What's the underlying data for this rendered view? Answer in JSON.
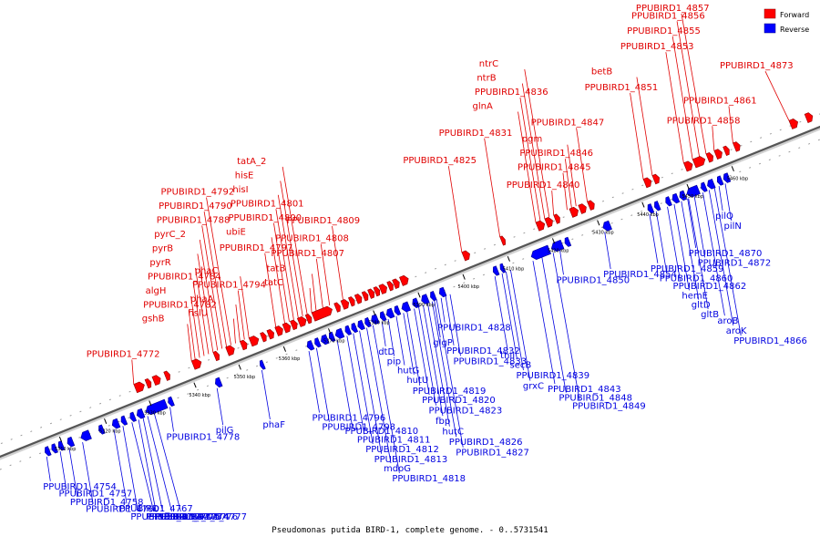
{
  "legend": {
    "forward_label": "Forward",
    "reverse_label": "Reverse",
    "forward_color": "#ff0000",
    "reverse_color": "#0000ff"
  },
  "caption": "Pseudomonas putida BIRD-1, complete genome. - 0..5731541",
  "scale_ticks": [
    "5310 kbp",
    "5320 kbp",
    "5330 kbp",
    "5340 kbp",
    "5350 kbp",
    "5360 kbp",
    "5370 kbp",
    "5380 kbp",
    "5390 kbp",
    "5400 kbp",
    "5410 kbp",
    "5420 kbp",
    "5430 kbp",
    "5440 kbp",
    "5450 kbp",
    "5460 kbp"
  ],
  "forward_genes": [
    {
      "pos": 5328.3,
      "len": 2.0
    },
    {
      "pos": 5330.8,
      "len": 1.0
    },
    {
      "pos": 5332.4,
      "len": 1.5
    },
    {
      "pos": 5335,
      "len": 1.0
    },
    {
      "pos": 5341.2,
      "len": 1.8
    },
    {
      "pos": 5346.0,
      "len": 1.0
    },
    {
      "pos": 5348.8,
      "len": 1.6
    },
    {
      "pos": 5352.0,
      "len": 1.2
    },
    {
      "pos": 5354.0,
      "len": 1.8
    },
    {
      "pos": 5356.5,
      "len": 1.0
    },
    {
      "pos": 5358.0,
      "len": 1.2
    },
    {
      "pos": 5359.8,
      "len": 1.4
    },
    {
      "pos": 5361.5,
      "len": 1.4
    },
    {
      "pos": 5363.2,
      "len": 1.2
    },
    {
      "pos": 5364.8,
      "len": 1.6
    },
    {
      "pos": 5366.6,
      "len": 1.0
    },
    {
      "pos": 5368.0,
      "len": 4.2
    },
    {
      "pos": 5373.0,
      "len": 1.0
    },
    {
      "pos": 5374.5,
      "len": 1.4
    },
    {
      "pos": 5376.2,
      "len": 1.0
    },
    {
      "pos": 5377.6,
      "len": 1.2
    },
    {
      "pos": 5379.2,
      "len": 1.0
    },
    {
      "pos": 5380.5,
      "len": 1.1
    },
    {
      "pos": 5381.8,
      "len": 1.0
    },
    {
      "pos": 5383.0,
      "len": 1.4
    },
    {
      "pos": 5384.8,
      "len": 1.0
    },
    {
      "pos": 5386.0,
      "len": 1.2
    },
    {
      "pos": 5387.6,
      "len": 1.6
    },
    {
      "pos": 5401.5,
      "len": 1.4
    },
    {
      "pos": 5410.0,
      "len": 0.8
    },
    {
      "pos": 5418.0,
      "len": 1.6
    },
    {
      "pos": 5420.0,
      "len": 1.4
    },
    {
      "pos": 5422.0,
      "len": 1.0
    },
    {
      "pos": 5425.5,
      "len": 1.6
    },
    {
      "pos": 5427.5,
      "len": 1.4
    },
    {
      "pos": 5429.5,
      "len": 1.2
    },
    {
      "pos": 5442.0,
      "len": 1.4
    },
    {
      "pos": 5444.0,
      "len": 1.2
    },
    {
      "pos": 5451.0,
      "len": 1.6
    },
    {
      "pos": 5453.0,
      "len": 2.4
    },
    {
      "pos": 5456.0,
      "len": 1.2
    },
    {
      "pos": 5457.8,
      "len": 1.4
    },
    {
      "pos": 5459.8,
      "len": 1.0
    },
    {
      "pos": 5462.0,
      "len": 1.2
    },
    {
      "pos": 5474.5,
      "len": 1.6
    },
    {
      "pos": 5478.0,
      "len": 1.4
    }
  ],
  "reverse_genes": [
    {
      "pos": 5306.0,
      "len": 1.0
    },
    {
      "pos": 5307.5,
      "len": 1.0
    },
    {
      "pos": 5309.0,
      "len": 1.0
    },
    {
      "pos": 5311.0,
      "len": 1.2
    },
    {
      "pos": 5314.0,
      "len": 2.0
    },
    {
      "pos": 5318.0,
      "len": 1.0
    },
    {
      "pos": 5321.0,
      "len": 1.4
    },
    {
      "pos": 5323.0,
      "len": 1.0
    },
    {
      "pos": 5325.0,
      "len": 1.0
    },
    {
      "pos": 5326.5,
      "len": 1.4
    },
    {
      "pos": 5328.5,
      "len": 4.5
    },
    {
      "pos": 5333.5,
      "len": 1.0
    },
    {
      "pos": 5344.0,
      "len": 1.2
    },
    {
      "pos": 5354.0,
      "len": 0.8
    },
    {
      "pos": 5364.5,
      "len": 1.2
    },
    {
      "pos": 5366.2,
      "len": 1.0
    },
    {
      "pos": 5367.6,
      "len": 1.4
    },
    {
      "pos": 5369.4,
      "len": 1.0
    },
    {
      "pos": 5370.8,
      "len": 1.6
    },
    {
      "pos": 5373.0,
      "len": 1.0
    },
    {
      "pos": 5374.4,
      "len": 1.0
    },
    {
      "pos": 5375.8,
      "len": 1.2
    },
    {
      "pos": 5377.4,
      "len": 1.0
    },
    {
      "pos": 5378.8,
      "len": 1.4
    },
    {
      "pos": 5380.8,
      "len": 1.0
    },
    {
      "pos": 5382.2,
      "len": 1.4
    },
    {
      "pos": 5384.0,
      "len": 1.0
    },
    {
      "pos": 5385.6,
      "len": 1.6
    },
    {
      "pos": 5388.0,
      "len": 1.2
    },
    {
      "pos": 5390.0,
      "len": 1.4
    },
    {
      "pos": 5392.0,
      "len": 1.0
    },
    {
      "pos": 5394.0,
      "len": 1.2
    },
    {
      "pos": 5406.0,
      "len": 1.0
    },
    {
      "pos": 5407.6,
      "len": 0.8
    },
    {
      "pos": 5414.5,
      "len": 4.0
    },
    {
      "pos": 5419.0,
      "len": 2.4
    },
    {
      "pos": 5422.0,
      "len": 1.0
    },
    {
      "pos": 5430.5,
      "len": 1.6
    },
    {
      "pos": 5440.5,
      "len": 1.0
    },
    {
      "pos": 5442.0,
      "len": 1.0
    },
    {
      "pos": 5444.5,
      "len": 1.0
    },
    {
      "pos": 5446.0,
      "len": 1.2
    },
    {
      "pos": 5447.6,
      "len": 1.2
    },
    {
      "pos": 5449.2,
      "len": 2.6
    },
    {
      "pos": 5452.4,
      "len": 1.0
    },
    {
      "pos": 5453.8,
      "len": 1.4
    },
    {
      "pos": 5456.0,
      "len": 1.0
    },
    {
      "pos": 5457.4,
      "len": 1.2
    }
  ],
  "forward_labels": [
    {
      "text": "PPUBIRD1_4772",
      "gene": 5328.3
    },
    {
      "text": "gshB",
      "gene": 5341.2
    },
    {
      "text": "PPUBIRD1_4782",
      "gene": 5342.0
    },
    {
      "text": "algH",
      "gene": 5343.0
    },
    {
      "text": "PPUBIRD1_4784",
      "gene": 5344.0
    },
    {
      "text": "pyrR",
      "gene": 5345.0
    },
    {
      "text": "pyrB",
      "gene": 5346.0
    },
    {
      "text": "pyrC_2",
      "gene": 5347.0
    },
    {
      "text": "PPUBIRD1_4788",
      "gene": 5348.0
    },
    {
      "text": "PPUBIRD1_4790",
      "gene": 5349.0
    },
    {
      "text": "PPUBIRD1_4792",
      "gene": 5350.0
    },
    {
      "text": "hslU",
      "gene": 5351.0
    },
    {
      "text": "phaA",
      "gene": 5352.0
    },
    {
      "text": "PPUBIRD1_4794",
      "gene": 5353.0
    },
    {
      "text": "phaC",
      "gene": 5354.0
    },
    {
      "text": "PPUBIRD1_4797",
      "gene": 5360.0
    },
    {
      "text": "ubiE",
      "gene": 5362.0
    },
    {
      "text": "PPUBIRD1_4800",
      "gene": 5363.0
    },
    {
      "text": "PPUBIRD1_4801",
      "gene": 5364.0
    },
    {
      "text": "hisI",
      "gene": 5365.0
    },
    {
      "text": "hisE",
      "gene": 5366.0
    },
    {
      "text": "tatA_2",
      "gene": 5367.0
    },
    {
      "text": "tatC",
      "gene": 5368.0
    },
    {
      "text": "tatB",
      "gene": 5369.0
    },
    {
      "text": "PPUBIRD1_4807",
      "gene": 5370.5
    },
    {
      "text": "PPUBIRD1_4808",
      "gene": 5372.0
    },
    {
      "text": "PPUBIRD1_4809",
      "gene": 5375.0
    },
    {
      "text": "PPUBIRD1_4825",
      "gene": 5401.5
    },
    {
      "text": "PPUBIRD1_4831",
      "gene": 5410.0
    },
    {
      "text": "glnA",
      "gene": 5418.0
    },
    {
      "text": "PPUBIRD1_4836",
      "gene": 5419.0
    },
    {
      "text": "ntrB",
      "gene": 5420.0
    },
    {
      "text": "ntrC",
      "gene": 5421.0
    },
    {
      "text": "PPUBIRD1_4840",
      "gene": 5422.0
    },
    {
      "text": "PPUBIRD1_4845",
      "gene": 5425.0
    },
    {
      "text": "PPUBIRD1_4846",
      "gene": 5426.0
    },
    {
      "text": "pgm",
      "gene": 5427.0
    },
    {
      "text": "PPUBIRD1_4847",
      "gene": 5429.5
    },
    {
      "text": "PPUBIRD1_4851",
      "gene": 5442.0
    },
    {
      "text": "betB",
      "gene": 5444.0
    },
    {
      "text": "PPUBIRD1_4853",
      "gene": 5451.0
    },
    {
      "text": "PPUBIRD1_4855",
      "gene": 5453.0
    },
    {
      "text": "PPUBIRD1_4856",
      "gene": 5454.5
    },
    {
      "text": "PPUBIRD1_4857",
      "gene": 5456.0
    },
    {
      "text": "PPUBIRD1_4858",
      "gene": 5457.8
    },
    {
      "text": "PPUBIRD1_4861",
      "gene": 5462.0
    },
    {
      "text": "PPUBIRD1_4873",
      "gene": 5474.5
    }
  ],
  "reverse_labels": [
    {
      "text": "PPUBIRD1_4754",
      "gene": 5306.0
    },
    {
      "text": "PPUBIRD1_4757",
      "gene": 5309.0
    },
    {
      "text": "PPUBIRD1_4758",
      "gene": 5311.0
    },
    {
      "text": "PPUBIRD1_4760",
      "gene": 5314.0
    },
    {
      "text": "PPUBIRD1_4767",
      "gene": 5321.0
    },
    {
      "text": "PPUBIRD1_4769",
      "gene": 5323.0
    },
    {
      "text": "PPUBIRD1_4773",
      "gene": 5326.5
    },
    {
      "text": "PPUBIRD1_4774",
      "gene": 5327.5
    },
    {
      "text": "PPUBIRD1_4775",
      "gene": 5325.0
    },
    {
      "text": "PPUBIRD1_4776",
      "gene": 5328.5
    },
    {
      "text": "PPUBIRD1_4777",
      "gene": 5330.0
    },
    {
      "text": "PPUBIRD1_4778",
      "gene": 5333.5
    },
    {
      "text": "pilG",
      "gene": 5344.0
    },
    {
      "text": "phaF",
      "gene": 5354.0
    },
    {
      "text": "PPUBIRD1_4796",
      "gene": 5364.5
    },
    {
      "text": "PPUBIRD1_4798",
      "gene": 5366.2
    },
    {
      "text": "PPUBIRD1_4810",
      "gene": 5370.8
    },
    {
      "text": "PPUBIRD1_4811",
      "gene": 5373.0
    },
    {
      "text": "PPUBIRD1_4812",
      "gene": 5374.4
    },
    {
      "text": "PPUBIRD1_4813",
      "gene": 5375.8
    },
    {
      "text": "mdoG",
      "gene": 5377.4
    },
    {
      "text": "PPUBIRD1_4818",
      "gene": 5378.8
    },
    {
      "text": "dtD",
      "gene": 5380.8
    },
    {
      "text": "pip",
      "gene": 5382.2
    },
    {
      "text": "hutG",
      "gene": 5384.0
    },
    {
      "text": "hutU",
      "gene": 5385.6
    },
    {
      "text": "PPUBIRD1_4819",
      "gene": 5386.4
    },
    {
      "text": "PPUBIRD1_4820",
      "gene": 5388.0
    },
    {
      "text": "PPUBIRD1_4823",
      "gene": 5389.0
    },
    {
      "text": "fbp",
      "gene": 5390.0
    },
    {
      "text": "hutC",
      "gene": 5391.0
    },
    {
      "text": "PPUBIRD1_4826",
      "gene": 5392.0
    },
    {
      "text": "PPUBIRD1_4827",
      "gene": 5393.0
    },
    {
      "text": "PPUBIRD1_4828",
      "gene": 5394.0
    },
    {
      "text": "glgP",
      "gene": 5392.5
    },
    {
      "text": "PPUBIRD1_4832",
      "gene": 5395.0
    },
    {
      "text": "PPUBIRD1_4833",
      "gene": 5396.0
    },
    {
      "text": "thiI",
      "gene": 5406.0
    },
    {
      "text": "secB",
      "gene": 5407.6
    },
    {
      "text": "PPUBIRD1_4839",
      "gene": 5408.5
    },
    {
      "text": "grxC",
      "gene": 5409.5
    },
    {
      "text": "PPUBIRD1_4843",
      "gene": 5414.5
    },
    {
      "text": "PPUBIRD1_4848",
      "gene": 5416.5
    },
    {
      "text": "PPUBIRD1_4849",
      "gene": 5419.0
    },
    {
      "text": "PPUBIRD1_4850",
      "gene": 5420.5
    },
    {
      "text": "PPUBIRD1_4854",
      "gene": 5430.5
    },
    {
      "text": "PPUBIRD1_4859",
      "gene": 5440.5
    },
    {
      "text": "PPUBIRD1_4860",
      "gene": 5442.0
    },
    {
      "text": "PPUBIRD1_4862",
      "gene": 5444.5
    },
    {
      "text": "hemE",
      "gene": 5446.0
    },
    {
      "text": "gltD",
      "gene": 5447.6
    },
    {
      "text": "gltB",
      "gene": 5449.2
    },
    {
      "text": "aroB",
      "gene": 5452.4
    },
    {
      "text": "aroK",
      "gene": 5453.8
    },
    {
      "text": "PPUBIRD1_4866",
      "gene": 5455.0
    },
    {
      "text": "pilQ",
      "gene": 5456.0
    },
    {
      "text": "pilN",
      "gene": 5457.4
    },
    {
      "text": "PPUBIRD1_4870",
      "gene": 5449.0
    },
    {
      "text": "PPUBIRD1_4872",
      "gene": 5450.5
    }
  ]
}
